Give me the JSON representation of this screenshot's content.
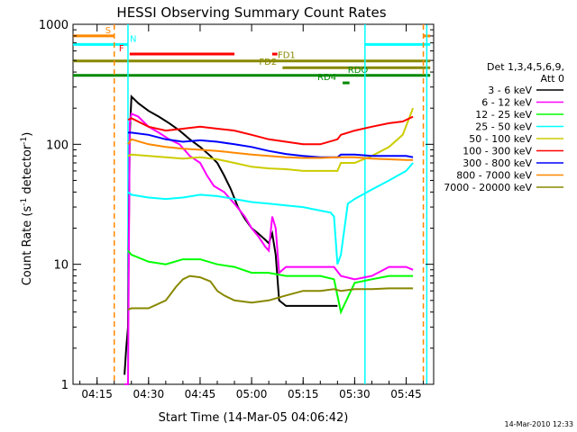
{
  "chart_data": {
    "type": "line",
    "title": "HESSI Observing Summary Count Rates",
    "xlabel": "Start Time (14-Mar-05 04:06:42)",
    "ylabel_main": "Count Rate (s",
    "ylabel_sup": "-1",
    "ylabel_mid": " detector",
    "ylabel_end": ")",
    "x_range_min": [
      8,
      113
    ],
    "y_range": [
      1,
      1000
    ],
    "y_scale": "log",
    "x_ticks": [
      {
        "label": "04:15",
        "min": 15
      },
      {
        "label": "04:30",
        "min": 30
      },
      {
        "label": "04:45",
        "min": 45
      },
      {
        "label": "05:00",
        "min": 60
      },
      {
        "label": "05:15",
        "min": 75
      },
      {
        "label": "05:30",
        "min": 90
      },
      {
        "label": "05:45",
        "min": 105
      }
    ],
    "y_ticks": [
      {
        "label": "1",
        "v": 1
      },
      {
        "label": "10",
        "v": 10
      },
      {
        "label": "100",
        "v": 100
      },
      {
        "label": "1000",
        "v": 1000
      }
    ],
    "legend": {
      "placement": "right",
      "header1": "Det 1,3,4,5,6,9,",
      "header2": "Att 0",
      "entries": [
        {
          "label": "3 - 6 keV",
          "color": "#000000"
        },
        {
          "label": "6 - 12 keV",
          "color": "#ff00ff"
        },
        {
          "label": "12 - 25 keV",
          "color": "#00ff00"
        },
        {
          "label": "25 - 50 keV",
          "color": "#00ffff"
        },
        {
          "label": "50 - 100 keV",
          "color": "#cccc00"
        },
        {
          "label": "100 - 300 keV",
          "color": "#ff0000"
        },
        {
          "label": "300 - 800 keV",
          "color": "#0000ff"
        },
        {
          "label": "800 - 7000 keV",
          "color": "#ff8800"
        },
        {
          "label": "7000 - 20000 keV",
          "color": "#888800"
        }
      ]
    },
    "flag_bars": [
      {
        "label": "S",
        "color": "#ff8800",
        "y": 800,
        "segments": [
          [
            8,
            20
          ],
          [
            110,
            112
          ]
        ]
      },
      {
        "label": "N",
        "color": "#00ffff",
        "y": 680,
        "segments": [
          [
            8,
            24
          ],
          [
            93,
            112
          ]
        ]
      },
      {
        "label": "F",
        "color": "#ff0000",
        "y": 565,
        "segments": [
          [
            24.5,
            55
          ],
          [
            66,
            67.5
          ]
        ]
      },
      {
        "label": "FD1",
        "color": "#888800",
        "y": 495,
        "segments": [
          [
            8,
            112
          ]
        ]
      },
      {
        "label": "FD2",
        "color": "#888800",
        "y": 435,
        "segments": [
          [
            69,
            112
          ]
        ]
      },
      {
        "label": "RDO",
        "color": "#008800",
        "y": 375,
        "segments": [
          [
            8,
            112
          ]
        ]
      },
      {
        "label": "RD4",
        "color": "#008800",
        "y": 325,
        "segments": [
          [
            86.5,
            88.5
          ]
        ]
      }
    ],
    "vlines": [
      {
        "min": 20,
        "color": "#ff8800",
        "dash": true
      },
      {
        "min": 24,
        "color": "#00ffff",
        "dash": false
      },
      {
        "min": 93,
        "color": "#00ffff",
        "dash": false
      },
      {
        "min": 110,
        "color": "#ff8800",
        "dash": true
      },
      {
        "min": 111,
        "color": "#00ffff",
        "dash": false
      }
    ],
    "series": [
      {
        "name": "3 - 6 keV",
        "color": "#000000",
        "x": [
          23,
          23.5,
          24,
          24.5,
          25,
          27,
          30,
          33,
          36,
          39,
          42,
          45,
          48,
          50,
          52,
          54,
          56,
          58,
          60,
          62,
          64,
          65,
          66,
          67,
          68,
          70,
          72,
          75,
          78,
          80,
          82,
          84,
          85
        ],
        "y": [
          1.2,
          2,
          3,
          120,
          250,
          220,
          190,
          170,
          150,
          130,
          110,
          95,
          80,
          70,
          55,
          42,
          30,
          24,
          20,
          18,
          16,
          15,
          18,
          12,
          5,
          4.5,
          4.5,
          4.5,
          4.5,
          4.5,
          4.5,
          4.5,
          4.5
        ]
      },
      {
        "name": "6 - 12 keV",
        "color": "#ff00ff",
        "x": [
          23,
          24,
          24.5,
          25,
          27,
          30,
          33,
          36,
          39,
          42,
          45,
          47,
          49,
          52,
          55,
          58,
          60,
          62,
          64,
          65,
          66,
          67,
          68,
          70,
          75,
          80,
          84,
          86,
          90,
          95,
          100,
          103,
          105,
          107
        ],
        "y": [
          1,
          1,
          150,
          180,
          170,
          140,
          125,
          110,
          100,
          80,
          70,
          55,
          45,
          40,
          32,
          25,
          20,
          17,
          14,
          13,
          25,
          20,
          8.5,
          9.5,
          9.5,
          9.5,
          9.5,
          8,
          7.5,
          8,
          9.5,
          9.5,
          9.5,
          9
        ]
      },
      {
        "name": "12 - 25 keV",
        "color": "#00ff00",
        "x": [
          24,
          25,
          30,
          35,
          40,
          45,
          50,
          55,
          60,
          65,
          70,
          75,
          80,
          84,
          86,
          90,
          95,
          100,
          105,
          107
        ],
        "y": [
          13,
          12,
          10.5,
          10,
          11,
          11,
          10,
          9.5,
          8.5,
          8.5,
          8,
          8,
          8,
          7.5,
          4,
          7,
          7.5,
          8,
          8,
          8
        ]
      },
      {
        "name": "25 - 50 keV",
        "color": "#00ffff",
        "x": [
          24,
          25,
          30,
          35,
          40,
          45,
          50,
          55,
          60,
          65,
          70,
          75,
          80,
          83,
          84,
          85,
          86,
          88,
          90,
          95,
          100,
          105,
          107
        ],
        "y": [
          40,
          38,
          36,
          35,
          36,
          38,
          37,
          35,
          33,
          32,
          31,
          30,
          28,
          27,
          25,
          10,
          12,
          32,
          35,
          42,
          50,
          60,
          70
        ]
      },
      {
        "name": "50 - 100 keV",
        "color": "#cccc00",
        "x": [
          24,
          25,
          30,
          35,
          40,
          45,
          50,
          55,
          60,
          65,
          70,
          75,
          80,
          85,
          86,
          90,
          95,
          100,
          104,
          107
        ],
        "y": [
          80,
          82,
          80,
          78,
          76,
          78,
          75,
          70,
          65,
          63,
          62,
          60,
          60,
          60,
          70,
          70,
          80,
          95,
          120,
          200
        ]
      },
      {
        "name": "100 - 300 keV",
        "color": "#ff0000",
        "x": [
          24,
          25,
          30,
          35,
          40,
          45,
          50,
          55,
          60,
          65,
          70,
          75,
          80,
          85,
          86,
          90,
          95,
          100,
          104,
          107
        ],
        "y": [
          160,
          165,
          140,
          130,
          135,
          140,
          135,
          130,
          120,
          110,
          105,
          100,
          100,
          110,
          120,
          130,
          140,
          150,
          155,
          170
        ]
      },
      {
        "name": "300 - 800 keV",
        "color": "#0000ff",
        "x": [
          24,
          25,
          30,
          35,
          40,
          45,
          50,
          55,
          60,
          65,
          70,
          75,
          80,
          85,
          86,
          90,
          95,
          100,
          105,
          107
        ],
        "y": [
          125,
          125,
          120,
          110,
          105,
          108,
          105,
          100,
          95,
          88,
          83,
          80,
          78,
          78,
          82,
          82,
          80,
          80,
          80,
          78
        ]
      },
      {
        "name": "800 - 7000 keV",
        "color": "#ff8800",
        "x": [
          24,
          25,
          30,
          35,
          40,
          45,
          50,
          55,
          60,
          65,
          70,
          75,
          80,
          85,
          90,
          95,
          100,
          105,
          107
        ],
        "y": [
          100,
          110,
          100,
          95,
          92,
          90,
          88,
          85,
          82,
          80,
          78,
          77,
          77,
          78,
          78,
          76,
          75,
          74,
          74
        ]
      },
      {
        "name": "7000 - 20000 keV",
        "color": "#888800",
        "x": [
          24,
          25,
          30,
          35,
          38,
          40,
          42,
          45,
          48,
          50,
          52,
          55,
          60,
          65,
          70,
          75,
          80,
          84,
          86,
          90,
          95,
          100,
          105,
          107
        ],
        "y": [
          4.2,
          4.3,
          4.3,
          5,
          6.5,
          7.5,
          8,
          7.8,
          7.2,
          6,
          5.5,
          5,
          4.8,
          5,
          5.5,
          6,
          6,
          6.2,
          6,
          6.2,
          6.2,
          6.3,
          6.3,
          6.3
        ]
      }
    ]
  },
  "footer": {
    "timestamp": "14-Mar-2010 12:33"
  }
}
